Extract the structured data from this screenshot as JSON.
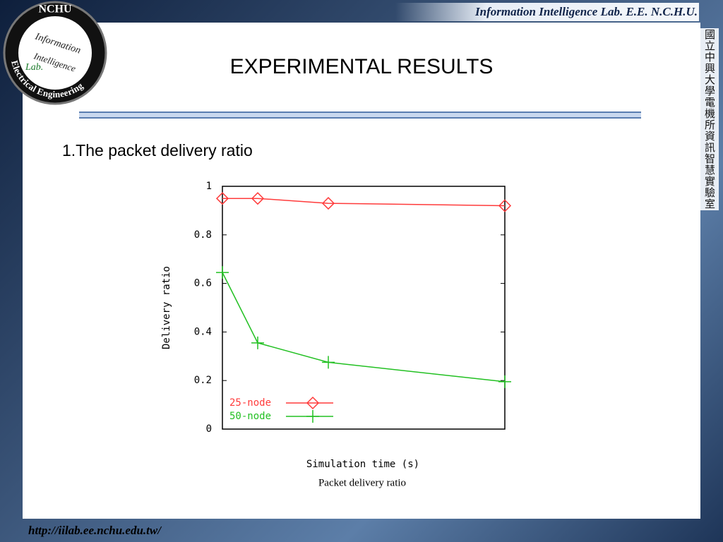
{
  "header": {
    "lab": "Information Intelligence Lab.  E.E.  N.C.H.U.",
    "title": "EXPERIMENTAL RESULTS",
    "logo": {
      "top": "NCHU",
      "ring": "Electrical Engineering",
      "line1": "Information",
      "line2": "Intelligence",
      "line3": "Lab."
    }
  },
  "side_text": "國立中興大學電機所資訊智慧實驗室",
  "section": "1.The packet delivery ratio",
  "chart_data": {
    "type": "line",
    "x_label": "Simulation time (s)",
    "y_label": "Delivery ratio",
    "caption": "Packet delivery ratio",
    "x": [
      0,
      50,
      150,
      400
    ],
    "xlim": [
      0,
      400
    ],
    "ylim": [
      0,
      1
    ],
    "yticks": [
      0,
      0.2,
      0.4,
      0.6,
      0.8,
      1
    ],
    "legend": "lower left",
    "series": [
      {
        "name": "25-node",
        "color": "#ff3b3b",
        "marker": "diamond",
        "values": [
          0.95,
          0.95,
          0.93,
          0.92
        ]
      },
      {
        "name": "50-node",
        "color": "#22c022",
        "marker": "plus",
        "values": [
          0.645,
          0.355,
          0.275,
          0.195
        ]
      }
    ]
  },
  "footer": {
    "url": "http://iilab.ee.nchu.edu.tw/"
  }
}
